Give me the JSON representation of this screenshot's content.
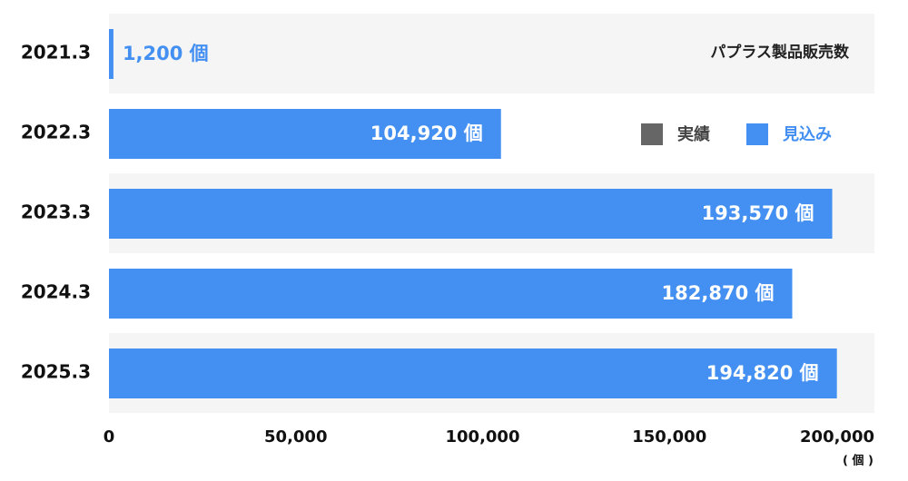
{
  "chart_data": {
    "type": "bar",
    "orientation": "horizontal",
    "title": "パプラス製品販売数",
    "categories": [
      "2021.3",
      "2022.3",
      "2023.3",
      "2024.3",
      "2025.3"
    ],
    "values": [
      1200,
      104920,
      193570,
      182870,
      194820
    ],
    "value_labels": [
      "1,200 個",
      "104,920 個",
      "193,570 個",
      "182,870 個",
      "194,820 個"
    ],
    "color": "#4390f2",
    "legend": [
      {
        "name": "実績",
        "color": "#666666"
      },
      {
        "name": "見込み",
        "color": "#4390f2"
      }
    ],
    "xlim": [
      0,
      200000
    ],
    "xticks": [
      0,
      {
        "value": 50000,
        "label": "50,000"
      },
      {
        "value": 100000,
        "label": "100,000"
      },
      {
        "value": 150000,
        "label": "150,000"
      },
      {
        "value": 200000,
        "label": "200,000"
      }
    ],
    "unit": "( 個 )"
  }
}
